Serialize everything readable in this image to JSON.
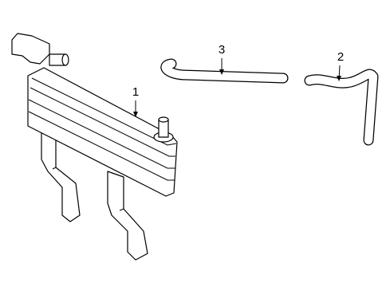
{
  "callouts": [
    {
      "label": "1"
    },
    {
      "label": "2"
    },
    {
      "label": "3"
    }
  ]
}
